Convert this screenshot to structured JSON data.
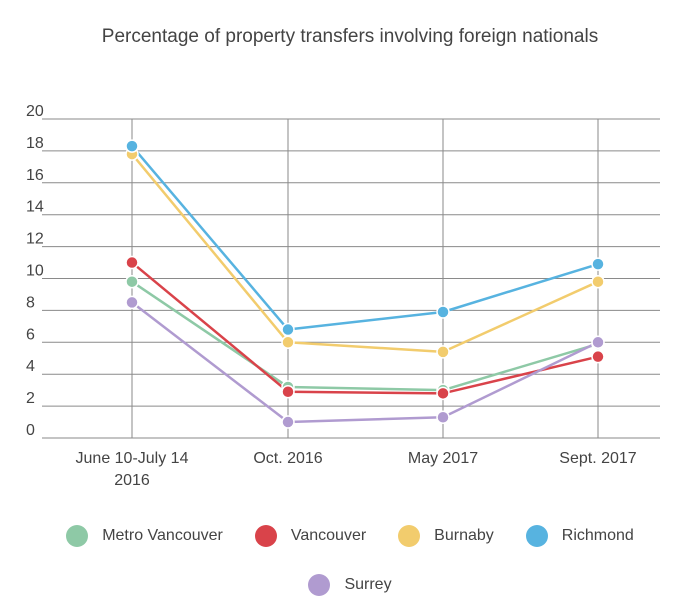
{
  "chart_data": {
    "type": "line",
    "title": "Percentage of property transfers involving foreign nationals",
    "xlabel": "",
    "ylabel": "",
    "ylim": [
      0,
      20
    ],
    "yticks": [
      0,
      2,
      4,
      6,
      8,
      10,
      12,
      14,
      16,
      18,
      20
    ],
    "grid": true,
    "legend_position": "bottom",
    "categories": [
      [
        "June 10-July 14",
        "2016"
      ],
      [
        "Oct. 2016"
      ],
      [
        "May 2017"
      ],
      [
        "Sept. 2017"
      ]
    ],
    "series": [
      {
        "name": "Metro Vancouver",
        "color": "#8ec9a6",
        "values": [
          9.8,
          3.2,
          3.0,
          5.9
        ]
      },
      {
        "name": "Vancouver",
        "color": "#d9434a",
        "values": [
          11.0,
          2.9,
          2.8,
          5.1
        ]
      },
      {
        "name": "Burnaby",
        "color": "#f2cc6d",
        "values": [
          17.8,
          6.0,
          5.4,
          9.8
        ]
      },
      {
        "name": "Richmond",
        "color": "#57b3e0",
        "values": [
          18.3,
          6.8,
          7.9,
          10.9
        ]
      },
      {
        "name": "Surrey",
        "color": "#b09bd0",
        "values": [
          8.5,
          1.0,
          1.3,
          6.0
        ]
      }
    ]
  }
}
